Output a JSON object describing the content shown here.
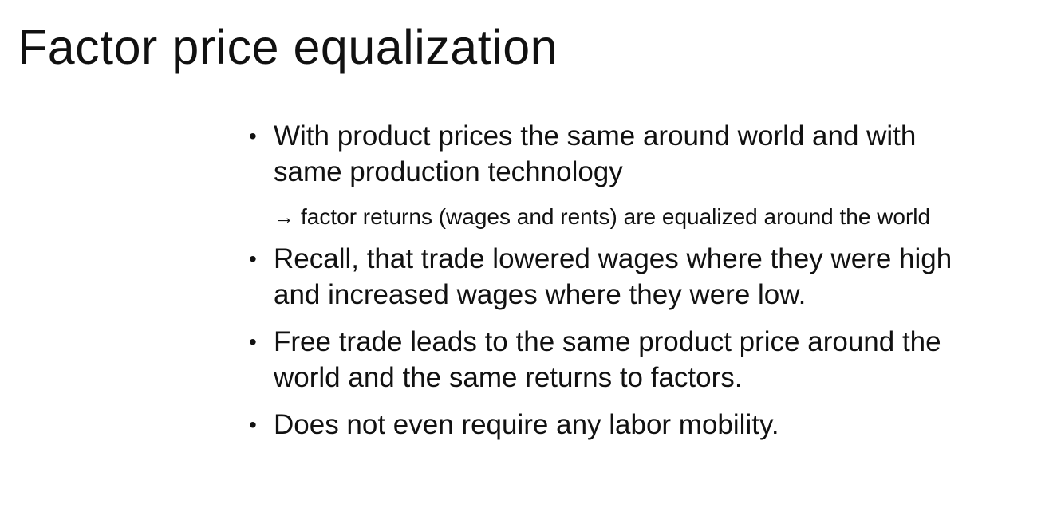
{
  "slide": {
    "title": "Factor price equalization",
    "bullets": [
      {
        "marker": "•",
        "text": "With product prices the same around world and with same production technology"
      },
      {
        "marker": "•",
        "text": "Recall, that trade lowered wages where they were high and increased wages where they were low."
      },
      {
        "marker": "•",
        "text": "Free trade leads to the same product price around the world and the same returns to factors."
      },
      {
        "marker": "•",
        "text": "Does not even require any labor mobility."
      }
    ],
    "subpoint": {
      "arrow": "→",
      "text": "factor returns (wages and rents) are equalized around the world"
    }
  }
}
